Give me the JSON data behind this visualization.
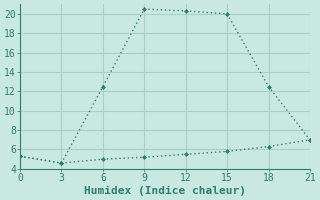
{
  "xlabel": "Humidex (Indice chaleur)",
  "line1_x": [
    0,
    3,
    6,
    9,
    12,
    15,
    18,
    21
  ],
  "line1_y": [
    5.3,
    4.6,
    12.5,
    20.5,
    20.3,
    20.0,
    12.5,
    7.0
  ],
  "line2_x": [
    0,
    3,
    6,
    9,
    12,
    15,
    18,
    21
  ],
  "line2_y": [
    5.3,
    4.6,
    5.0,
    5.2,
    5.5,
    5.8,
    6.3,
    7.0
  ],
  "line_color": "#2e7d72",
  "bg_color": "#c8e8e0",
  "grid_color": "#aacfc8",
  "xlim": [
    0,
    21
  ],
  "ylim": [
    4,
    21
  ],
  "xticks": [
    0,
    3,
    6,
    9,
    12,
    15,
    18,
    21
  ],
  "yticks": [
    4,
    6,
    8,
    10,
    12,
    14,
    16,
    18,
    20
  ],
  "tick_fontsize": 7,
  "label_fontsize": 8
}
